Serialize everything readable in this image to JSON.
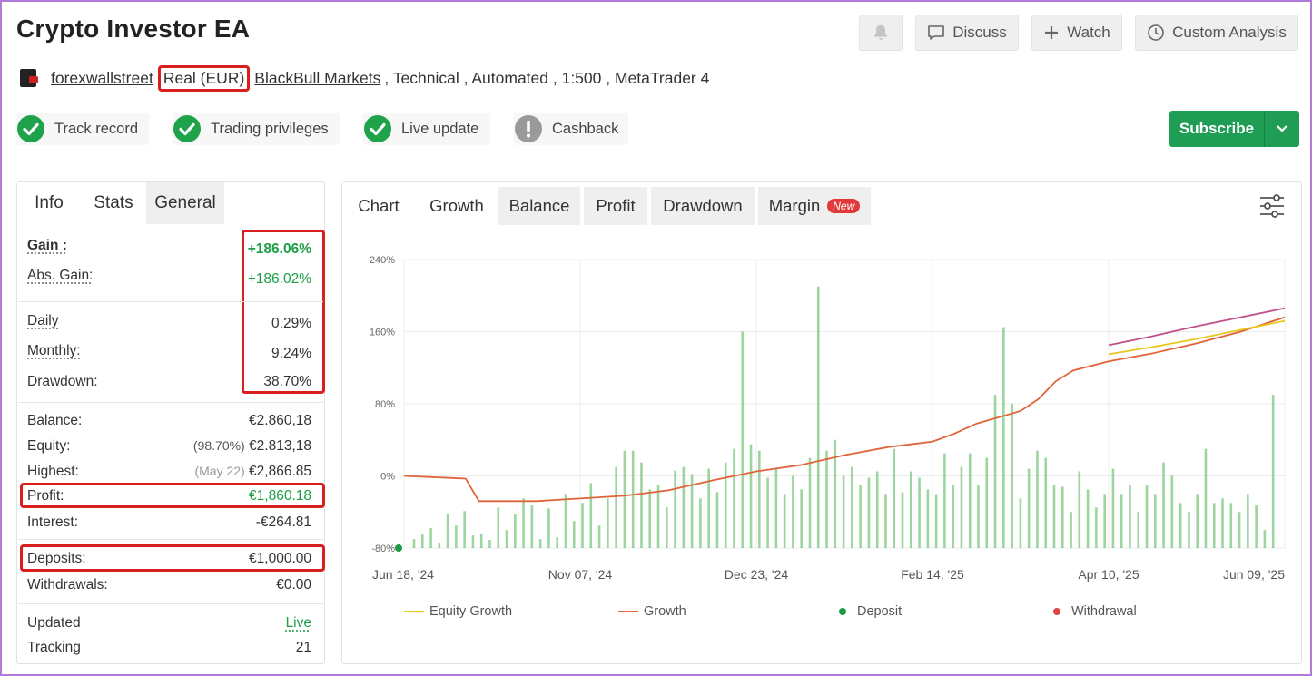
{
  "header": {
    "title": "Crypto Investor EA",
    "buttons": {
      "discuss": "Discuss",
      "watch": "Watch",
      "custom_analysis": "Custom Analysis"
    }
  },
  "meta": {
    "user": "forexwallstreet",
    "account_type": "Real (EUR)",
    "broker": "BlackBull Markets",
    "rest": ", Technical , Automated , 1:500 , MetaTrader 4"
  },
  "badges": {
    "track_record": "Track record",
    "trading_privileges": "Trading privileges",
    "live_update": "Live update",
    "cashback": "Cashback"
  },
  "subscribe_label": "Subscribe",
  "left_tabs": {
    "info": "Info",
    "stats": "Stats",
    "general": "General"
  },
  "stats": {
    "gain": {
      "label": "Gain :",
      "value": "+186.06%"
    },
    "abs_gain": {
      "label": "Abs. Gain:",
      "value": "+186.02%"
    },
    "daily": {
      "label": "Daily",
      "value": "0.29%"
    },
    "monthly": {
      "label": "Monthly:",
      "value": "9.24%"
    },
    "drawdown": {
      "label": "Drawdown:",
      "value": "38.70%"
    },
    "balance": {
      "label": "Balance:",
      "value": "€2.860,18"
    },
    "equity": {
      "label": "Equity:",
      "pct": "(98.70%)",
      "value": "€2.813,18"
    },
    "highest": {
      "label": "Highest:",
      "date": "(May 22)",
      "value": "€2,866.85"
    },
    "profit": {
      "label": "Profit:",
      "value": "€1,860.18"
    },
    "interest": {
      "label": "Interest:",
      "value": "-€264.81"
    },
    "deposits": {
      "label": "Deposits:",
      "value": "€1,000.00"
    },
    "withdrawals": {
      "label": "Withdrawals:",
      "value": "€0.00"
    },
    "updated": {
      "label": "Updated",
      "value": "Live"
    },
    "tracking": {
      "label": "Tracking",
      "value": "21"
    }
  },
  "chart_tabs": {
    "chart": "Chart",
    "growth": "Growth",
    "balance": "Balance",
    "profit": "Profit",
    "drawdown": "Drawdown",
    "margin": "Margin",
    "new": "New"
  },
  "chart_data": {
    "type": "line",
    "y_ticks": [
      "240%",
      "160%",
      "80%",
      "0%",
      "-80%"
    ],
    "ylim": [
      -80,
      240
    ],
    "x_ticks": [
      "Jun 18, '24",
      "Nov 07, '24",
      "Dec 23, '24",
      "Feb 14, '25",
      "Apr 10, '25",
      "Jun 09, '25"
    ],
    "legend": [
      "Equity Growth",
      "Growth",
      "Deposit",
      "Withdrawal"
    ],
    "series": [
      {
        "name": "Growth",
        "color": "#e0643a",
        "x": [
          0,
          0.07,
          0.085,
          0.15,
          0.25,
          0.3,
          0.35,
          0.4,
          0.45,
          0.5,
          0.55,
          0.6,
          0.625,
          0.65,
          0.7,
          0.72,
          0.74,
          0.76,
          0.8,
          0.85,
          0.9,
          0.95,
          1.0
        ],
        "values": [
          0,
          -3,
          -28,
          -28,
          -22,
          -16,
          -5,
          5,
          12,
          23,
          32,
          38,
          47,
          58,
          72,
          85,
          105,
          117,
          127,
          136,
          147,
          160,
          176
        ]
      },
      {
        "name": "Equity Growth",
        "color": "#e8c81e",
        "x": [
          0.8,
          0.85,
          0.9,
          0.95,
          1.0
        ],
        "values": [
          135,
          143,
          152,
          162,
          172
        ]
      },
      {
        "name": "Upper growth",
        "color": "#c0508a",
        "x": [
          0.8,
          0.85,
          0.9,
          0.95,
          1.0
        ],
        "values": [
          145,
          155,
          166,
          176,
          186
        ]
      }
    ],
    "deposit_points": [
      {
        "x": 0.0,
        "value": -80
      }
    ],
    "daily_bars": [
      10,
      15,
      22,
      6,
      38,
      25,
      41,
      14,
      16,
      9,
      45,
      20,
      38,
      55,
      48,
      10,
      44,
      12,
      60,
      30,
      50,
      72,
      25,
      55,
      90,
      108,
      108,
      95,
      65,
      70,
      45,
      86,
      90,
      82,
      55,
      88,
      62,
      95,
      110,
      240,
      115,
      108,
      78,
      88,
      60,
      80,
      65,
      100,
      290,
      108,
      120,
      80,
      90,
      70,
      78,
      85,
      60,
      110,
      62,
      85,
      78,
      65,
      60,
      105,
      70,
      90,
      105,
      70,
      100,
      170,
      245,
      160,
      55,
      88,
      108,
      100,
      70,
      68,
      40,
      85,
      65,
      45,
      60,
      88,
      60,
      70,
      40,
      70,
      60,
      95,
      80,
      50,
      40,
      60,
      110,
      50,
      55,
      50,
      40,
      60,
      48,
      20,
      170
    ]
  }
}
